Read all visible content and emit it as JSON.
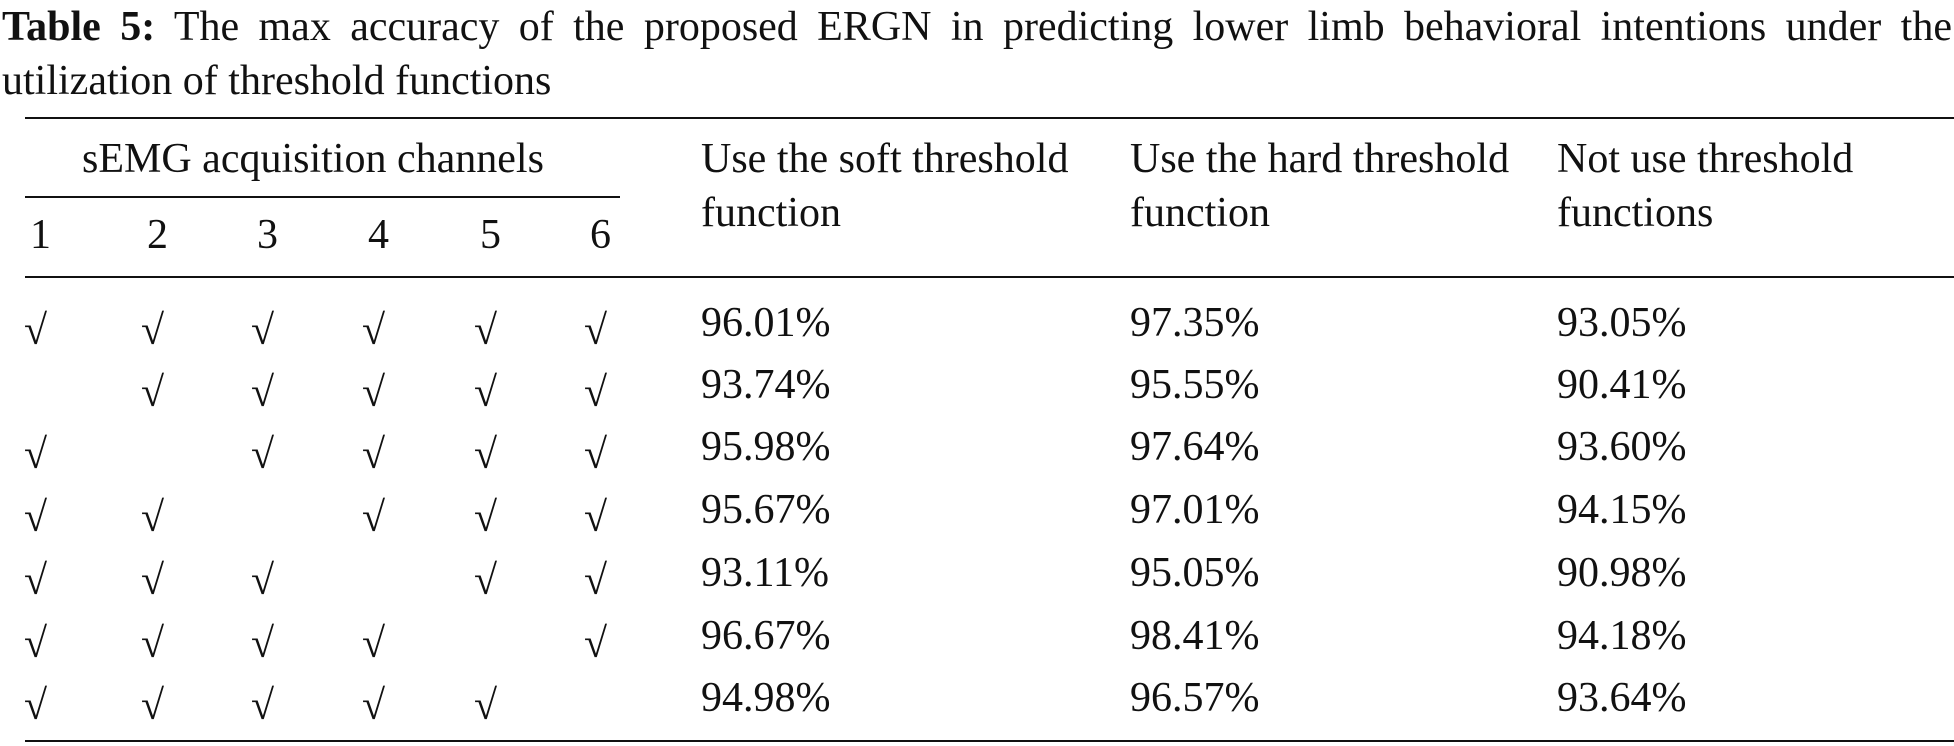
{
  "caption": {
    "label": "Table 5:",
    "text": "The max accuracy of the proposed ERGN in predicting lower limb behavioral intentions under the utilization of threshold functions"
  },
  "table": {
    "group_header": "sEMG acquisition channels",
    "channels": [
      1,
      2,
      3,
      4,
      5,
      6
    ],
    "columns": [
      "Use the soft threshold function",
      "Use the hard threshold function",
      "Not use threshold functions"
    ],
    "rows": [
      [
        "√",
        "√",
        "√",
        "√",
        "√",
        "√",
        "96.01%",
        "97.35%",
        "93.05%"
      ],
      [
        null,
        "√",
        "√",
        "√",
        "√",
        "√",
        "93.74%",
        "95.55%",
        "90.41%"
      ],
      [
        "√",
        null,
        "√",
        "√",
        "√",
        "√",
        "95.98%",
        "97.64%",
        "93.60%"
      ],
      [
        "√",
        "√",
        null,
        "√",
        "√",
        "√",
        "95.67%",
        "97.01%",
        "94.15%"
      ],
      [
        "√",
        "√",
        "√",
        null,
        "√",
        "√",
        "93.11%",
        "95.05%",
        "90.98%"
      ],
      [
        "√",
        "√",
        "√",
        "√",
        null,
        "√",
        "96.67%",
        "98.41%",
        "94.18%"
      ],
      [
        "√",
        "√",
        "√",
        "√",
        "√",
        null,
        "94.98%",
        "96.57%",
        "93.64%"
      ]
    ]
  }
}
